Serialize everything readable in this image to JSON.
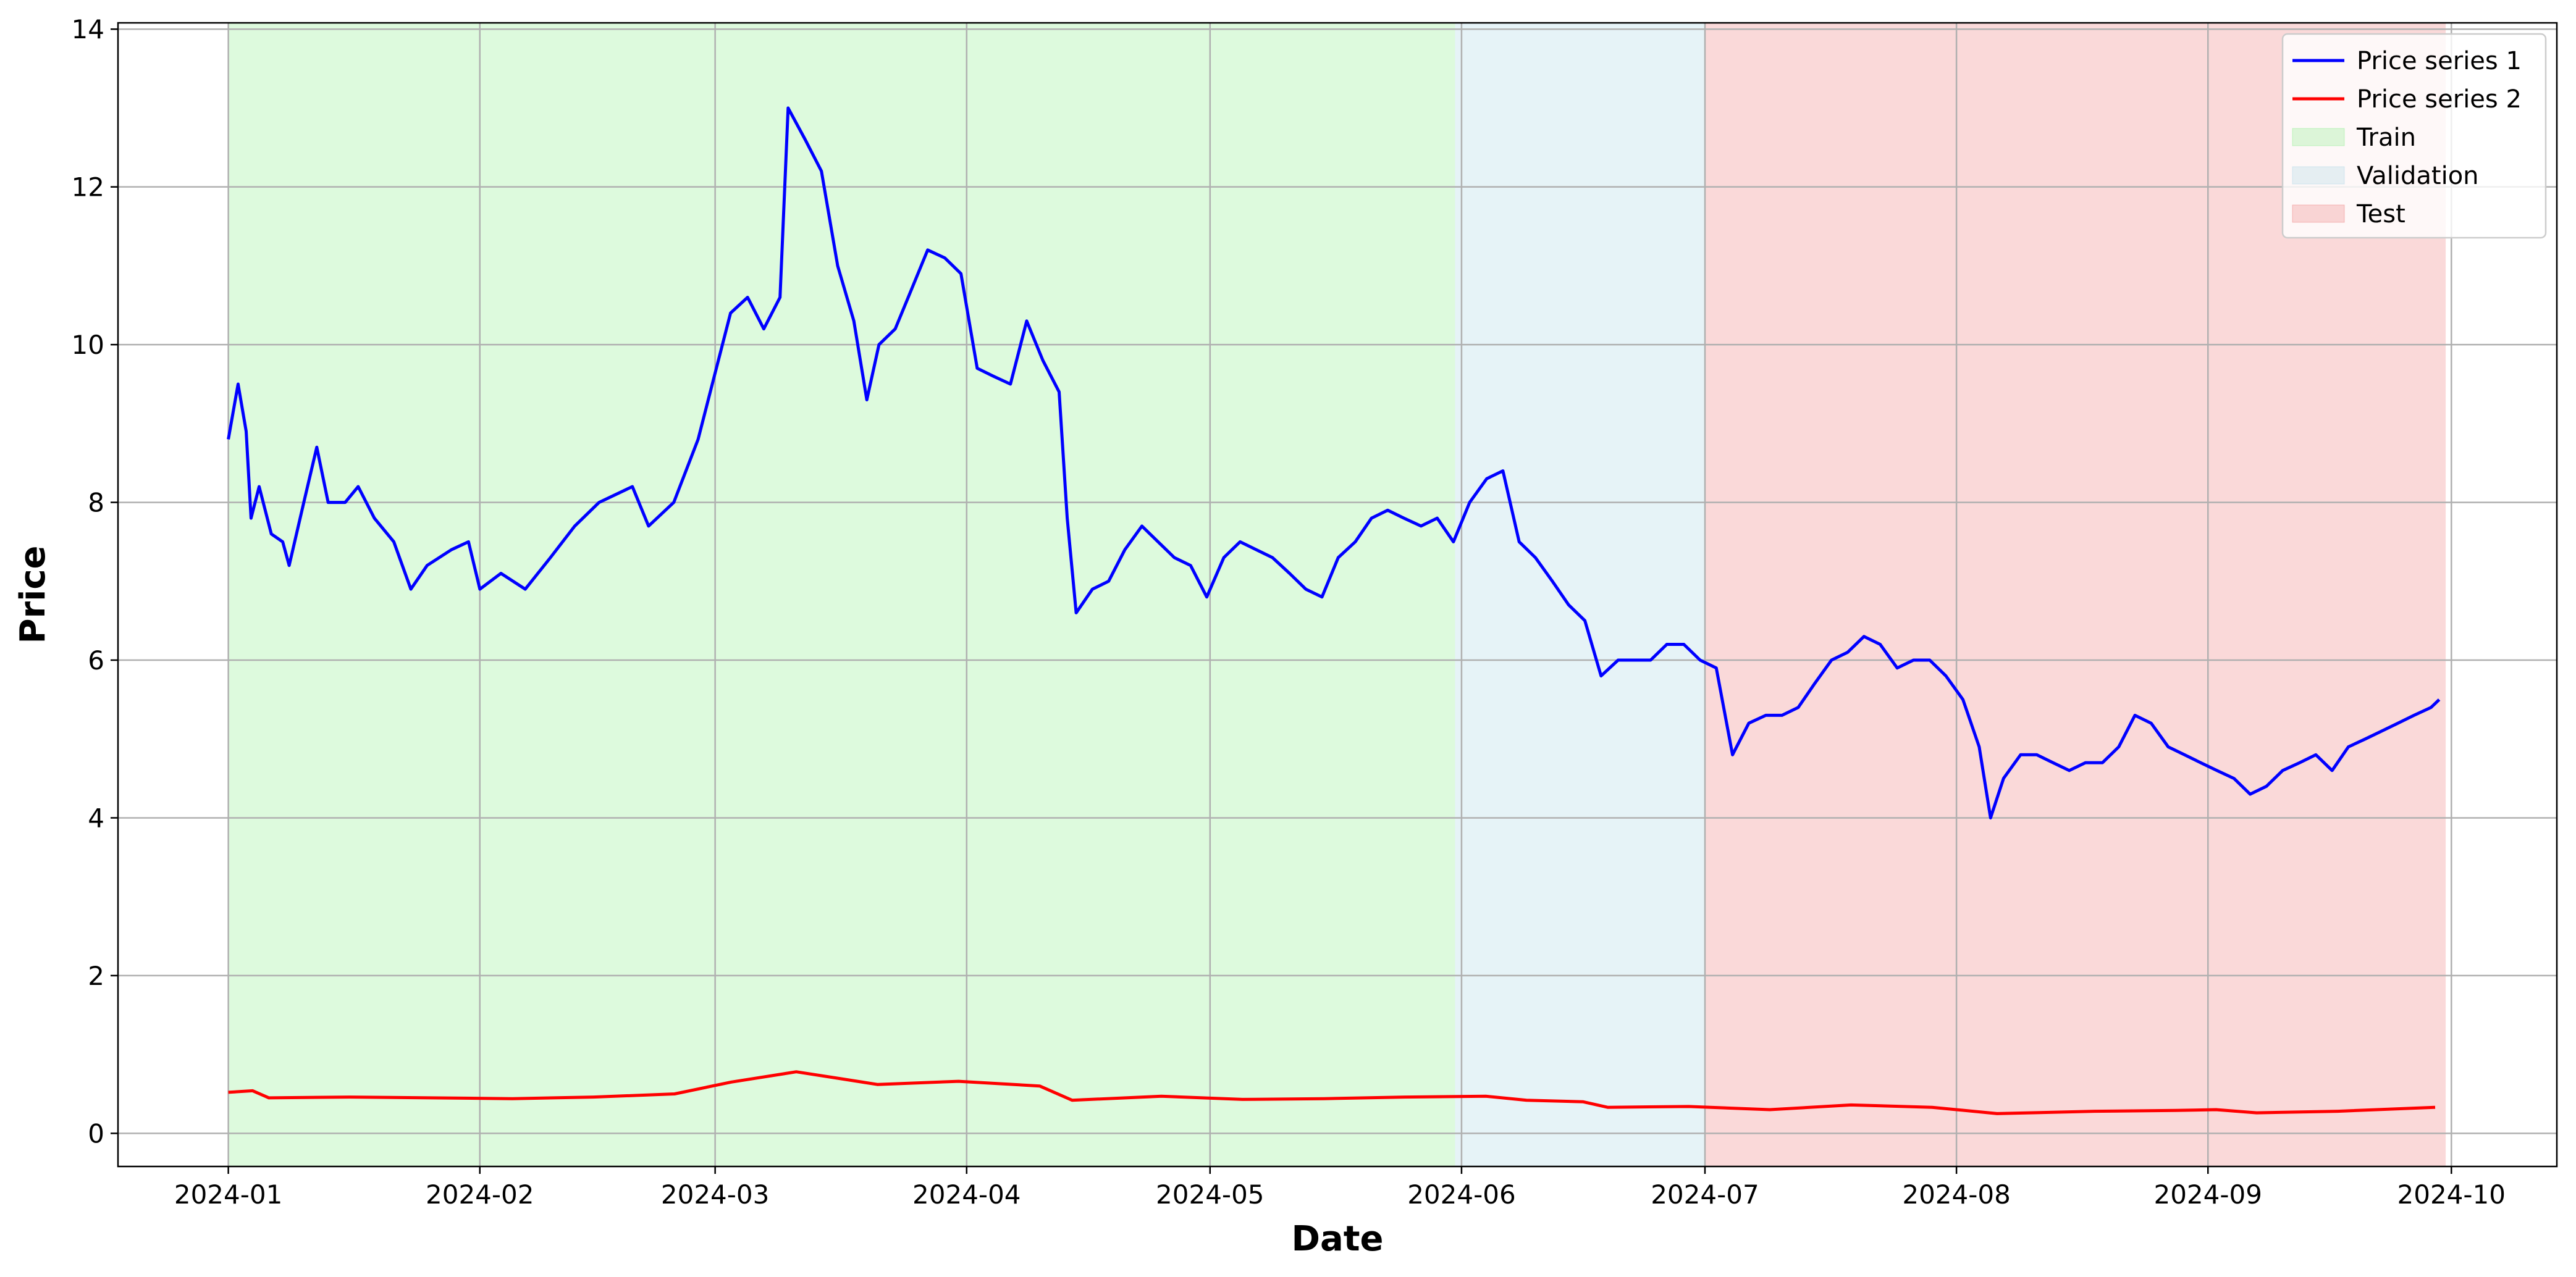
{
  "chart_data": {
    "type": "line",
    "xlabel": "Date",
    "ylabel": "Price",
    "xlim": [
      -13.6,
      287
    ],
    "ylim": [
      -0.42,
      14.08
    ],
    "xticks": [
      {
        "value": 0,
        "label": "2024-01"
      },
      {
        "value": 31,
        "label": "2024-02"
      },
      {
        "value": 60,
        "label": "2024-03"
      },
      {
        "value": 91,
        "label": "2024-04"
      },
      {
        "value": 121,
        "label": "2024-05"
      },
      {
        "value": 152,
        "label": "2024-06"
      },
      {
        "value": 182,
        "label": "2024-07"
      },
      {
        "value": 213,
        "label": "2024-08"
      },
      {
        "value": 244,
        "label": "2024-09"
      },
      {
        "value": 274,
        "label": "2024-10"
      }
    ],
    "yticks": [
      0,
      2,
      4,
      6,
      8,
      10,
      12,
      14
    ],
    "grid": true,
    "legend": "upper right",
    "spans": [
      {
        "name": "Train",
        "color": "#90ee90",
        "alpha": 0.3,
        "start": 0,
        "end": 151.2
      },
      {
        "name": "Validation",
        "color": "#add8e6",
        "alpha": 0.3,
        "start": 151.2,
        "end": 182
      },
      {
        "name": "Test",
        "color": "#f08080",
        "alpha": 0.3,
        "start": 182,
        "end": 273.3
      }
    ],
    "series": [
      {
        "name": "Price series 1",
        "color": "#0000ff",
        "x": [
          0,
          1.2,
          2.2,
          2.8,
          3.8,
          5.3,
          6.7,
          7.5,
          9.3,
          10.9,
          12.3,
          14.4,
          16.0,
          18.0,
          20.4,
          22.5,
          24.5,
          27.5,
          29.6,
          31.0,
          33.6,
          36.6,
          39.7,
          42.7,
          45.7,
          49.8,
          51.8,
          54.9,
          57.9,
          59.9,
          61.9,
          64.0,
          66.0,
          68.0,
          69.0,
          71.1,
          73.1,
          75.1,
          77.1,
          78.7,
          80.2,
          82.2,
          84.2,
          86.2,
          88.3,
          90.3,
          92.3,
          94.3,
          96.4,
          98.4,
          100.4,
          102.4,
          103.4,
          104.5,
          106.5,
          108.5,
          110.5,
          112.6,
          114.6,
          116.6,
          118.6,
          120.6,
          122.7,
          124.7,
          126.7,
          128.7,
          130.8,
          132.8,
          134.8,
          136.8,
          138.9,
          140.9,
          142.9,
          144.9,
          147.0,
          149.0,
          151.0,
          153.0,
          155.1,
          157.1,
          159.1,
          161.1,
          163.2,
          165.2,
          167.2,
          169.2,
          171.3,
          173.3,
          175.3,
          177.3,
          179.4,
          181.4,
          183.4,
          185.4,
          187.4,
          189.5,
          191.5,
          193.5,
          195.5,
          197.6,
          199.6,
          201.6,
          203.6,
          205.7,
          207.7,
          209.7,
          211.7,
          213.8,
          215.8,
          217.2,
          218.8,
          220.9,
          222.9,
          224.9,
          226.9,
          228.9,
          231.0,
          233.0,
          235.0,
          237.0,
          239.1,
          241.1,
          243.1,
          245.1,
          247.2,
          249.2,
          251.2,
          253.2,
          255.3,
          257.3,
          259.3,
          261.3,
          263.4,
          265.4,
          267.4,
          269.4,
          271.5,
          272.5
        ],
        "values": [
          8.8,
          9.5,
          8.9,
          7.8,
          8.2,
          7.6,
          7.5,
          7.2,
          8.0,
          8.7,
          8.0,
          8.0,
          8.2,
          7.8,
          7.5,
          6.9,
          7.2,
          7.4,
          7.5,
          6.9,
          7.1,
          6.9,
          7.3,
          7.7,
          8.0,
          8.2,
          7.7,
          8.0,
          8.8,
          9.6,
          10.4,
          10.6,
          10.2,
          10.6,
          13.0,
          12.6,
          12.2,
          11.0,
          10.3,
          9.3,
          10.0,
          10.2,
          10.7,
          11.2,
          11.1,
          10.9,
          9.7,
          9.6,
          9.5,
          10.3,
          9.8,
          9.4,
          7.8,
          6.6,
          6.9,
          7.0,
          7.4,
          7.7,
          7.5,
          7.3,
          7.2,
          6.8,
          7.3,
          7.5,
          7.4,
          7.3,
          7.1,
          6.9,
          6.8,
          7.3,
          7.5,
          7.8,
          7.9,
          7.8,
          7.7,
          7.8,
          7.5,
          8.0,
          8.3,
          8.4,
          7.5,
          7.3,
          7.0,
          6.7,
          6.5,
          5.8,
          6.0,
          6.0,
          6.0,
          6.2,
          6.2,
          6.0,
          5.9,
          4.8,
          5.2,
          5.3,
          5.3,
          5.4,
          5.7,
          6.0,
          6.1,
          6.3,
          6.2,
          5.9,
          6.0,
          6.0,
          5.8,
          5.5,
          4.9,
          4.0,
          4.5,
          4.8,
          4.8,
          4.7,
          4.6,
          4.7,
          4.7,
          4.9,
          5.3,
          5.2,
          4.9,
          4.8,
          4.7,
          4.6,
          4.5,
          4.3,
          4.4,
          4.6,
          4.7,
          4.8,
          4.6,
          4.9,
          5.0,
          5.1,
          5.2,
          5.3,
          5.4,
          5.5
        ]
      },
      {
        "name": "Price series 2",
        "color": "#ff0000",
        "x": [
          0,
          3,
          5,
          15,
          25,
          35,
          45,
          55,
          62,
          70,
          75,
          80,
          90,
          100,
          104,
          115,
          125,
          135,
          145,
          155,
          160,
          167,
          170,
          180,
          190,
          200,
          210,
          218,
          230,
          240,
          245,
          250,
          260,
          272
        ],
        "values": [
          0.52,
          0.54,
          0.45,
          0.46,
          0.45,
          0.44,
          0.46,
          0.5,
          0.65,
          0.78,
          0.7,
          0.62,
          0.66,
          0.6,
          0.42,
          0.47,
          0.43,
          0.44,
          0.46,
          0.47,
          0.42,
          0.4,
          0.33,
          0.34,
          0.3,
          0.36,
          0.33,
          0.25,
          0.28,
          0.29,
          0.3,
          0.26,
          0.28,
          0.33
        ]
      }
    ]
  }
}
